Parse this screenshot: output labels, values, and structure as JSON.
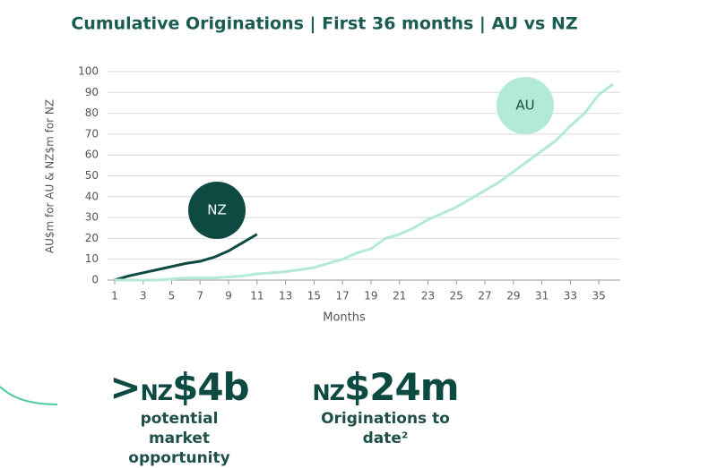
{
  "chart_data": {
    "type": "line",
    "title": "Cumulative Originations | First 36 months | AU vs NZ",
    "x_label": "Months",
    "y_label": "AU$m for AU & NZ$m for NZ",
    "x": [
      1,
      2,
      3,
      4,
      5,
      6,
      7,
      8,
      9,
      10,
      11,
      12,
      13,
      14,
      15,
      16,
      17,
      18,
      19,
      20,
      21,
      22,
      23,
      24,
      25,
      26,
      27,
      28,
      29,
      30,
      31,
      32,
      33,
      34,
      35,
      36
    ],
    "series": [
      {
        "name": "NZ",
        "color": "#0d4a42",
        "values": [
          0,
          2,
          3.5,
          5,
          6.5,
          8,
          9,
          11,
          14,
          18,
          22,
          null,
          null,
          null,
          null,
          null,
          null,
          null,
          null,
          null,
          null,
          null,
          null,
          null,
          null,
          null,
          null,
          null,
          null,
          null,
          null,
          null,
          null,
          null,
          null,
          null
        ]
      },
      {
        "name": "AU",
        "color": "#b3ead6",
        "values": [
          0,
          0,
          0,
          0,
          0.5,
          1,
          1,
          1,
          1.5,
          2,
          3,
          3.5,
          4,
          5,
          6,
          8,
          10,
          13,
          15,
          20,
          22,
          25,
          29,
          32,
          35,
          39,
          43,
          47,
          52,
          57,
          62,
          67,
          74,
          80,
          89,
          94
        ]
      }
    ],
    "xlim": [
      0.5,
      36.5
    ],
    "xticks": [
      1,
      3,
      5,
      7,
      9,
      11,
      13,
      15,
      17,
      19,
      21,
      23,
      25,
      27,
      29,
      31,
      33,
      35
    ],
    "ylim": [
      0,
      100
    ],
    "yticks": [
      0,
      10,
      20,
      30,
      40,
      50,
      60,
      70,
      80,
      90,
      100
    ],
    "grid": true
  },
  "stats": [
    {
      "prefix": ">",
      "currency": "NZ",
      "amount": "$4b",
      "label": "potential market opportunity"
    },
    {
      "currency": "NZ",
      "amount": "$24m",
      "label": "Originations to date²"
    }
  ]
}
